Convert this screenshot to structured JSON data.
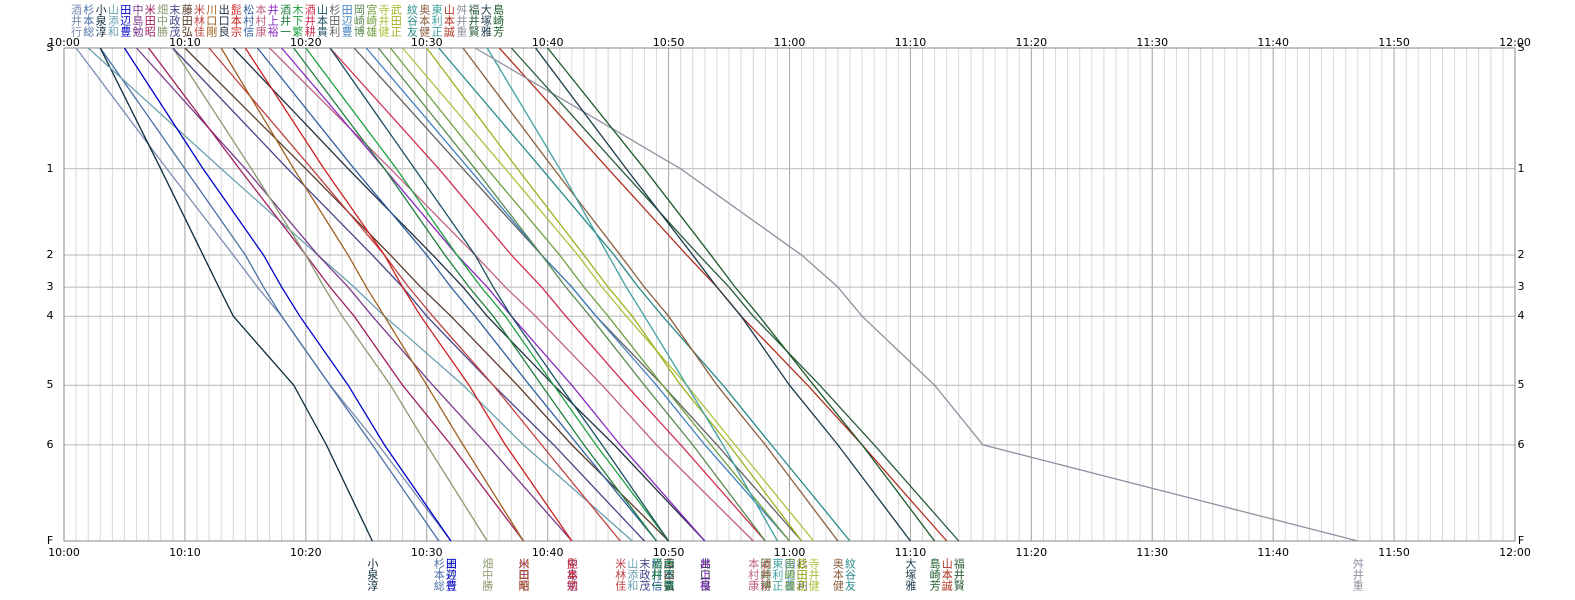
{
  "chart_data": {
    "type": "line",
    "stations": [
      "S",
      "1",
      "2",
      "3",
      "4",
      "5",
      "6",
      "F"
    ],
    "xlim": [
      0,
      120
    ],
    "xticks": [
      {
        "value": 0,
        "label": "10:00"
      },
      {
        "value": 10,
        "label": "10:10"
      },
      {
        "value": 20,
        "label": "10:20"
      },
      {
        "value": 30,
        "label": "10:30"
      },
      {
        "value": 40,
        "label": "10:40"
      },
      {
        "value": 50,
        "label": "10:50"
      },
      {
        "value": 60,
        "label": "11:00"
      },
      {
        "value": 70,
        "label": "11:10"
      },
      {
        "value": 80,
        "label": "11:20"
      },
      {
        "value": 90,
        "label": "11:30"
      },
      {
        "value": 100,
        "label": "11:40"
      },
      {
        "value": 110,
        "label": "11:50"
      },
      {
        "value": 120,
        "label": "12:00"
      }
    ],
    "grid": true,
    "series": [
      {
        "name": "酒井行",
        "color": "#7a8cb0",
        "values": [
          1,
          8.5,
          14,
          16,
          18,
          22,
          26,
          32
        ]
      },
      {
        "name": "杉本総",
        "color": "#4a6fa5",
        "values": [
          3,
          10,
          15,
          16.5,
          18,
          22,
          25.5,
          31
        ]
      },
      {
        "name": "小泉淳",
        "color": "#0a2a3a",
        "values": [
          3,
          8,
          11.5,
          12.8,
          14,
          19,
          21.7,
          25.5
        ]
      },
      {
        "name": "山添和",
        "color": "#6aa0b0",
        "values": [
          2,
          13,
          21,
          24,
          26.5,
          33,
          38,
          47
        ]
      },
      {
        "name": "田辺豊",
        "color": "#0000cc",
        "values": [
          5,
          11.5,
          16.5,
          18,
          19.5,
          23.5,
          26.5,
          32
        ]
      },
      {
        "name": "中島勉",
        "color": "#7a3a8a",
        "values": [
          6,
          15,
          21,
          23.5,
          25.5,
          30.5,
          35,
          42
        ]
      },
      {
        "name": "米田昭",
        "color": "#a02060",
        "values": [
          7,
          14.5,
          20,
          22,
          24,
          28,
          32,
          38
        ]
      },
      {
        "name": "畑中勝",
        "color": "#8a9a70",
        "values": [
          9,
          15.5,
          20,
          21.5,
          23,
          27,
          30,
          35
        ]
      },
      {
        "name": "末政茂",
        "color": "#444488",
        "values": [
          9,
          18.5,
          25.5,
          28,
          30,
          35.5,
          40.5,
          48
        ]
      },
      {
        "name": "藤田弘",
        "color": "#5a3a2a",
        "values": [
          10,
          20,
          27,
          29.5,
          32,
          37.5,
          42,
          50
        ]
      },
      {
        "name": "米林佳",
        "color": "#c04040",
        "values": [
          12,
          20.5,
          26.5,
          28.5,
          30.5,
          35.5,
          39.5,
          46
        ]
      },
      {
        "name": "川口剛",
        "color": "#a06020",
        "values": [
          13,
          19,
          23.5,
          25,
          26.5,
          30,
          33,
          38
        ]
      },
      {
        "name": "出口良",
        "color": "#203040",
        "values": [
          14,
          23.5,
          30.5,
          33,
          35,
          40.5,
          45.5,
          53
        ]
      },
      {
        "name": "髭本宗",
        "color": "#cc2020",
        "values": [
          15,
          21.5,
          26.5,
          28,
          29.5,
          33.5,
          36.5,
          42
        ]
      },
      {
        "name": "松村信",
        "color": "#3060a0",
        "values": [
          16,
          24,
          30,
          32,
          34,
          38.5,
          42.5,
          49
        ]
      },
      {
        "name": "本村康",
        "color": "#c06080",
        "values": [
          17,
          27,
          34,
          36.5,
          39,
          44.5,
          49,
          57
        ]
      },
      {
        "name": "井上裕",
        "color": "#8a2ac0",
        "values": [
          18,
          26.5,
          32.5,
          35,
          37,
          42,
          46,
          53
        ]
      },
      {
        "name": "酒井一",
        "color": "#208040",
        "values": [
          19,
          26.5,
          31.5,
          33.5,
          35.5,
          39.5,
          43,
          49
        ]
      },
      {
        "name": "木下繁",
        "color": "#20a040",
        "values": [
          20,
          27.5,
          32.5,
          34.5,
          36.5,
          40.5,
          44,
          50
        ]
      },
      {
        "name": "酒井耕",
        "color": "#d03050",
        "values": [
          22,
          31,
          37,
          39.5,
          41.5,
          46.5,
          51,
          58
        ]
      },
      {
        "name": "山本貴",
        "color": "#1a5060",
        "values": [
          22,
          29,
          34,
          35.5,
          37,
          41,
          44.5,
          50
        ]
      },
      {
        "name": "杉田利",
        "color": "#606060",
        "values": [
          24,
          33,
          39.5,
          42,
          44,
          49.5,
          54,
          61
        ]
      },
      {
        "name": "田辺豊",
        "color": "#4080c0",
        "values": [
          25,
          33.5,
          39.5,
          42,
          44,
          49,
          53,
          60
        ]
      },
      {
        "name": "岡崎博",
        "color": "#5a8a50",
        "values": [
          26,
          34,
          39.5,
          41.5,
          43.5,
          48,
          52,
          58
        ]
      },
      {
        "name": "宮崎雄",
        "color": "#70a040",
        "values": [
          27,
          35,
          41,
          43,
          45,
          49.5,
          53.5,
          60
        ]
      },
      {
        "name": "寺井健",
        "color": "#b0c040",
        "values": [
          28,
          36.5,
          42.5,
          44.5,
          46.5,
          51.5,
          55.5,
          62
        ]
      },
      {
        "name": "武田正",
        "color": "#a0b020",
        "values": [
          30,
          37.5,
          43,
          45,
          47,
          51,
          55,
          61
        ]
      },
      {
        "name": "紋谷友",
        "color": "#2a8a8a",
        "values": [
          31,
          39.5,
          45.5,
          47.5,
          49.5,
          54.5,
          58.5,
          65
        ]
      },
      {
        "name": "奥本健",
        "color": "#8a6040",
        "values": [
          33,
          40.5,
          46,
          48,
          50,
          54,
          58,
          64
        ]
      },
      {
        "name": "東利正",
        "color": "#40a0a0",
        "values": [
          35,
          41,
          45,
          46.5,
          48,
          51.5,
          54.5,
          59
        ]
      },
      {
        "name": "山本誠",
        "color": "#b03020",
        "values": [
          36,
          45,
          51.5,
          54,
          56,
          61.5,
          66,
          73
        ]
      },
      {
        "name": "舛井重",
        "color": "#9090a0",
        "values": [
          34,
          51,
          61,
          64,
          66,
          72,
          76,
          107
        ]
      },
      {
        "name": "福井賢",
        "color": "#2a5a3a",
        "values": [
          37,
          46,
          52.5,
          55,
          57,
          62.5,
          67,
          74
        ]
      },
      {
        "name": "大塚雅",
        "color": "#1a3a4a",
        "values": [
          39,
          46.5,
          52,
          54,
          56,
          60,
          64,
          70
        ]
      },
      {
        "name": "島崎芳",
        "color": "#1a5a2a",
        "values": [
          40,
          48,
          53.5,
          55.5,
          57.5,
          62,
          66,
          72
        ]
      }
    ]
  }
}
